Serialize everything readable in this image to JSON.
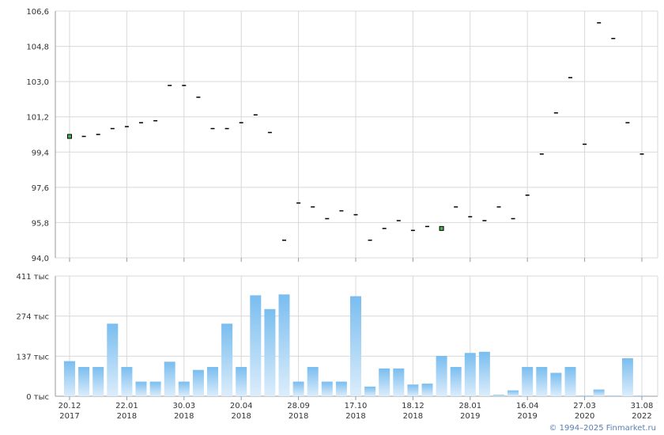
{
  "chart_data": [
    {
      "type": "scatter",
      "name": "price",
      "ylim": [
        94.0,
        106.6
      ],
      "yticks": [
        "94,0",
        "95,8",
        "97,6",
        "99,4",
        "101,2",
        "103,0",
        "104,8",
        "106,6"
      ],
      "ytick_values": [
        94.0,
        95.8,
        97.6,
        99.4,
        101.2,
        103.0,
        104.8,
        106.6
      ],
      "values": [
        100.2,
        100.2,
        100.3,
        100.6,
        100.7,
        100.9,
        101.0,
        102.8,
        102.8,
        102.2,
        100.6,
        100.6,
        100.9,
        101.3,
        100.4,
        94.9,
        96.8,
        96.6,
        96.0,
        96.4,
        96.2,
        94.9,
        95.5,
        95.9,
        95.4,
        95.6,
        95.5,
        96.6,
        96.1,
        95.9,
        96.6,
        96.0,
        97.2,
        99.3,
        101.4,
        103.2,
        99.8,
        106.0,
        105.2,
        100.9,
        99.3
      ],
      "highlighted_points": [
        0,
        26
      ],
      "grid": true
    },
    {
      "type": "bar",
      "name": "volume",
      "ylim": [
        0,
        411
      ],
      "yticks": [
        "0 тыс",
        "137 тыс",
        "274 тыс",
        "411 тыс"
      ],
      "ytick_values": [
        0,
        137,
        274,
        411
      ],
      "values": [
        120,
        100,
        100,
        248,
        100,
        50,
        50,
        118,
        50,
        90,
        100,
        248,
        100,
        345,
        298,
        348,
        50,
        100,
        50,
        50,
        342,
        33,
        95,
        95,
        40,
        43,
        138,
        100,
        148,
        152,
        5,
        20,
        100,
        100,
        80,
        100,
        3,
        23,
        3,
        130,
        3
      ],
      "grid": true
    }
  ],
  "x_axis": {
    "labels": [
      {
        "date": "20.12",
        "year": "2017"
      },
      {
        "date": "22.01",
        "year": "2018"
      },
      {
        "date": "30.03",
        "year": "2018"
      },
      {
        "date": "20.04",
        "year": "2018"
      },
      {
        "date": "28.09",
        "year": "2018"
      },
      {
        "date": "17.10",
        "year": "2018"
      },
      {
        "date": "18.12",
        "year": "2018"
      },
      {
        "date": "28.01",
        "year": "2019"
      },
      {
        "date": "16.04",
        "year": "2019"
      },
      {
        "date": "27.03",
        "year": "2020"
      },
      {
        "date": "31.08",
        "year": "2022"
      }
    ],
    "label_positions": [
      0,
      4,
      8,
      12,
      16,
      20,
      24,
      28,
      32,
      36,
      40
    ]
  },
  "colors": {
    "grid": "#d8d8d8",
    "axis": "#999999",
    "bar_top": "#79bdef",
    "bar_bottom": "#dcedfb",
    "marker": "#000000",
    "highlight": "#4caf50"
  },
  "copyright": "© 1994–2025 Finmarket.ru"
}
